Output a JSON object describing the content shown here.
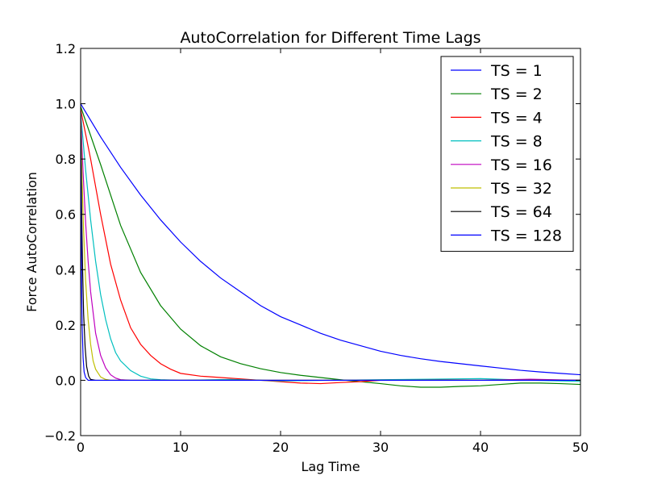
{
  "chart_data": {
    "type": "line",
    "title": "AutoCorrelation for Different Time Lags",
    "xlabel": "Lag Time",
    "ylabel": "Force AutoCorrelation",
    "xlim": [
      0,
      50
    ],
    "ylim": [
      -0.2,
      1.2
    ],
    "x_ticks": [
      "0",
      "10",
      "20",
      "30",
      "40",
      "50"
    ],
    "y_ticks": [
      "−0.2",
      "0.0",
      "0.2",
      "0.4",
      "0.6",
      "0.8",
      "1.0",
      "1.2"
    ],
    "grid": false,
    "legend_position": "top-right",
    "series": [
      {
        "name": "TS = 1",
        "color": "#0000ff",
        "x": [
          0,
          2,
          4,
          6,
          8,
          10,
          12,
          14,
          16,
          18,
          20,
          22,
          24,
          26,
          28,
          30,
          32,
          34,
          36,
          38,
          40,
          42,
          44,
          46,
          48,
          50
        ],
        "y": [
          1.0,
          0.88,
          0.77,
          0.67,
          0.58,
          0.5,
          0.43,
          0.37,
          0.32,
          0.27,
          0.23,
          0.2,
          0.17,
          0.145,
          0.125,
          0.105,
          0.09,
          0.078,
          0.068,
          0.06,
          0.052,
          0.044,
          0.036,
          0.03,
          0.025,
          0.02
        ]
      },
      {
        "name": "TS = 2",
        "color": "#008000",
        "x": [
          0,
          2,
          4,
          6,
          8,
          10,
          12,
          14,
          16,
          18,
          20,
          22,
          24,
          26,
          28,
          30,
          32,
          34,
          36,
          38,
          40,
          42,
          44,
          46,
          48,
          50
        ],
        "y": [
          0.99,
          0.78,
          0.56,
          0.39,
          0.27,
          0.185,
          0.125,
          0.085,
          0.06,
          0.042,
          0.028,
          0.018,
          0.01,
          0.002,
          -0.005,
          -0.012,
          -0.02,
          -0.025,
          -0.025,
          -0.022,
          -0.02,
          -0.015,
          -0.01,
          -0.01,
          -0.012,
          -0.015
        ]
      },
      {
        "name": "TS = 4",
        "color": "#ff0000",
        "x": [
          0,
          1,
          2,
          3,
          4,
          5,
          6,
          7,
          8,
          9,
          10,
          12,
          14,
          16,
          18,
          20,
          22,
          24,
          26,
          28,
          30,
          35,
          40,
          45,
          50
        ],
        "y": [
          0.98,
          0.8,
          0.6,
          0.42,
          0.29,
          0.19,
          0.13,
          0.09,
          0.06,
          0.04,
          0.025,
          0.015,
          0.01,
          0.005,
          0.0,
          -0.005,
          -0.01,
          -0.012,
          -0.008,
          -0.005,
          0.0,
          0.002,
          0.0,
          0.002,
          0.0
        ]
      },
      {
        "name": "TS = 8",
        "color": "#00bfbf",
        "x": [
          0,
          0.5,
          1,
          1.5,
          2,
          2.5,
          3,
          3.5,
          4,
          5,
          6,
          7,
          8,
          10,
          15,
          20,
          25,
          30,
          35,
          40,
          45,
          50
        ],
        "y": [
          0.97,
          0.76,
          0.58,
          0.43,
          0.31,
          0.22,
          0.15,
          0.1,
          0.07,
          0.035,
          0.015,
          0.005,
          0.002,
          0.0,
          0.003,
          -0.002,
          0.0,
          0.002,
          0.004,
          0.006,
          0.0,
          -0.004
        ]
      },
      {
        "name": "TS = 16",
        "color": "#bf00bf",
        "x": [
          0,
          0.25,
          0.5,
          0.75,
          1,
          1.5,
          2,
          2.5,
          3,
          3.5,
          4,
          5,
          10,
          20,
          30,
          40,
          45,
          50
        ],
        "y": [
          0.96,
          0.75,
          0.57,
          0.43,
          0.32,
          0.17,
          0.09,
          0.045,
          0.02,
          0.008,
          0.002,
          0.0,
          0.0,
          0.0,
          0.0,
          0.0,
          0.004,
          0.0
        ]
      },
      {
        "name": "TS = 32",
        "color": "#bfbf00",
        "x": [
          0,
          0.15,
          0.3,
          0.5,
          0.75,
          1,
          1.25,
          1.5,
          2,
          2.5,
          3,
          5,
          50
        ],
        "y": [
          0.94,
          0.72,
          0.54,
          0.36,
          0.22,
          0.13,
          0.07,
          0.04,
          0.012,
          0.003,
          0.0,
          0.0,
          0.0
        ]
      },
      {
        "name": "TS = 64",
        "color": "#000000",
        "x": [
          0,
          0.1,
          0.2,
          0.3,
          0.45,
          0.6,
          0.8,
          1,
          1.5,
          5,
          10,
          20,
          30,
          40,
          50
        ],
        "y": [
          0.92,
          0.62,
          0.4,
          0.24,
          0.12,
          0.05,
          0.015,
          0.003,
          0.0,
          0.0,
          0.0,
          0.0,
          0.0,
          0.0,
          0.0
        ]
      },
      {
        "name": "TS = 128",
        "color": "#0000ff",
        "x": [
          0,
          0.05,
          0.1,
          0.15,
          0.25,
          0.35,
          0.5,
          0.75,
          1,
          2,
          5,
          10,
          20,
          30,
          40,
          50
        ],
        "y": [
          0.9,
          0.55,
          0.34,
          0.2,
          0.08,
          0.03,
          0.01,
          0.0,
          0.0,
          0.0,
          0.0,
          0.0,
          0.0,
          0.0,
          0.0,
          0.0
        ]
      }
    ]
  }
}
